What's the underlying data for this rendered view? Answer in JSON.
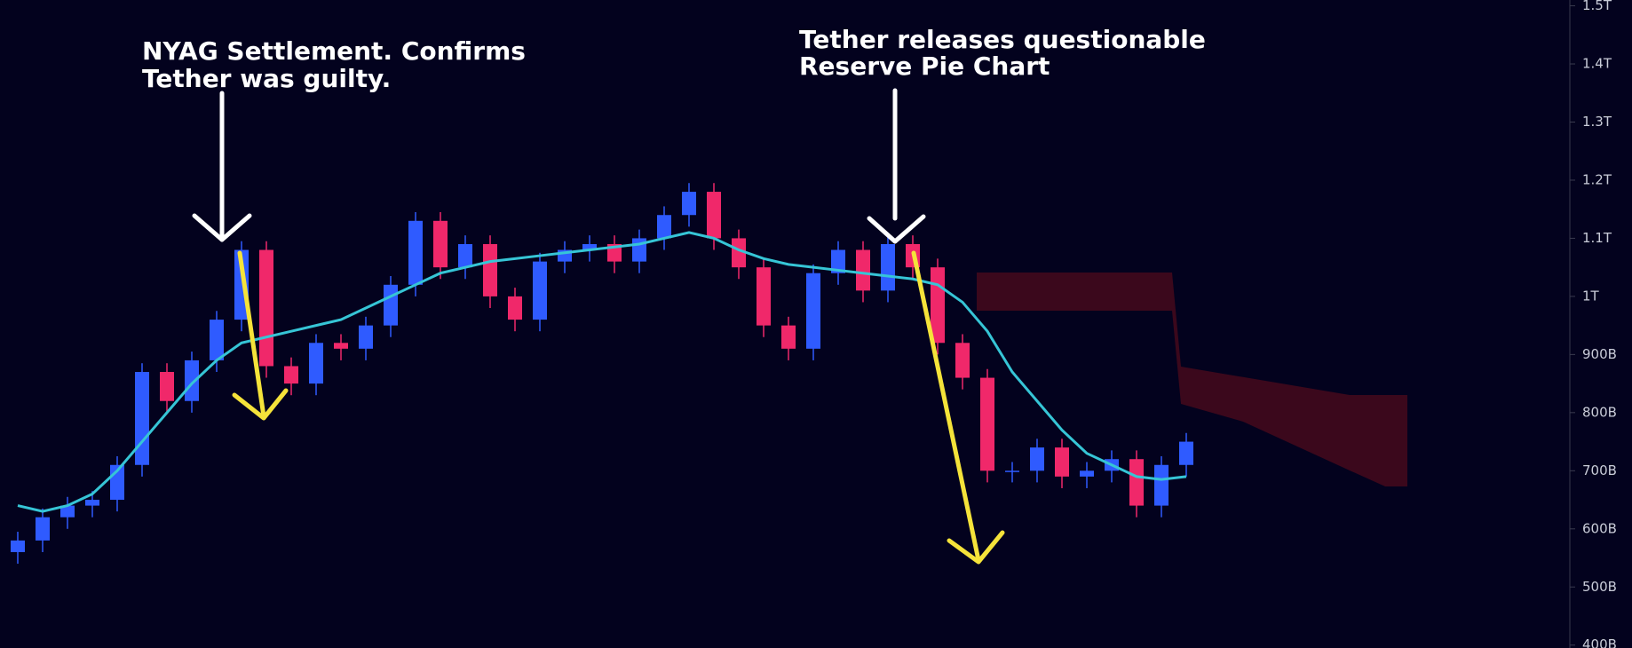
{
  "chart_data": {
    "type": "candlestick",
    "annotations": [
      {
        "lines": [
          "NYAG Settlement. Confirms",
          "Tether was guilty."
        ]
      },
      {
        "lines": [
          "Tether releases questionable",
          "Reserve Pie Chart"
        ]
      }
    ],
    "open": [
      560,
      580,
      620,
      640,
      650,
      710,
      870,
      820,
      890,
      960,
      1080,
      880,
      850,
      920,
      910,
      950,
      1020,
      1130,
      1050,
      1090,
      1000,
      960,
      1060,
      1080,
      1090,
      1060,
      1100,
      1140,
      1180,
      1100,
      1050,
      950,
      910,
      1040,
      1080,
      1010,
      1090,
      1050,
      920,
      860,
      700,
      700,
      740,
      690,
      700,
      720,
      640,
      710
    ],
    "high": [
      595,
      635,
      655,
      665,
      725,
      885,
      885,
      905,
      975,
      1095,
      1095,
      895,
      935,
      935,
      965,
      1035,
      1145,
      1145,
      1105,
      1105,
      1015,
      1075,
      1095,
      1105,
      1105,
      1115,
      1155,
      1195,
      1195,
      1115,
      1065,
      965,
      1055,
      1095,
      1095,
      1105,
      1105,
      1065,
      935,
      875,
      715,
      755,
      755,
      715,
      735,
      735,
      725,
      765
    ],
    "low": [
      540,
      560,
      600,
      620,
      630,
      690,
      800,
      800,
      870,
      940,
      860,
      830,
      830,
      890,
      890,
      930,
      1000,
      1030,
      1030,
      980,
      940,
      940,
      1040,
      1060,
      1040,
      1040,
      1080,
      1120,
      1080,
      1030,
      930,
      890,
      890,
      1020,
      990,
      990,
      1030,
      900,
      840,
      680,
      680,
      680,
      670,
      670,
      680,
      620,
      620,
      690
    ],
    "close": [
      580,
      620,
      640,
      650,
      710,
      870,
      820,
      890,
      960,
      1080,
      880,
      850,
      920,
      910,
      950,
      1020,
      1130,
      1050,
      1090,
      1000,
      960,
      1060,
      1080,
      1090,
      1060,
      1100,
      1140,
      1180,
      1100,
      1050,
      950,
      910,
      1040,
      1080,
      1010,
      1090,
      1050,
      920,
      860,
      700,
      700,
      740,
      690,
      700,
      720,
      640,
      710,
      750
    ],
    "up_color": "#2f5bff",
    "down_color": "#f0286a",
    "ma": {
      "color": "#36c5d6",
      "values": [
        640,
        630,
        640,
        660,
        700,
        750,
        800,
        850,
        890,
        920,
        930,
        940,
        950,
        960,
        980,
        1000,
        1020,
        1040,
        1050,
        1060,
        1065,
        1070,
        1075,
        1080,
        1085,
        1090,
        1100,
        1110,
        1100,
        1080,
        1065,
        1055,
        1050,
        1045,
        1040,
        1035,
        1030,
        1020,
        990,
        940,
        870,
        820,
        770,
        730,
        710,
        690,
        685,
        690
      ]
    },
    "ylim": [
      395,
      1510
    ],
    "yticks": [
      {
        "value": 1500,
        "label": "1.5T"
      },
      {
        "value": 1400,
        "label": "1.4T"
      },
      {
        "value": 1300,
        "label": "1.3T"
      },
      {
        "value": 1200,
        "label": "1.2T"
      },
      {
        "value": 1100,
        "label": "1.1T"
      },
      {
        "value": 1000,
        "label": "1T"
      },
      {
        "value": 900,
        "label": "900B"
      },
      {
        "value": 800,
        "label": "800B"
      },
      {
        "value": 700,
        "label": "700B"
      },
      {
        "value": 600,
        "label": "600B"
      },
      {
        "value": 500,
        "label": "500B"
      },
      {
        "value": 400,
        "label": "400B"
      }
    ]
  }
}
